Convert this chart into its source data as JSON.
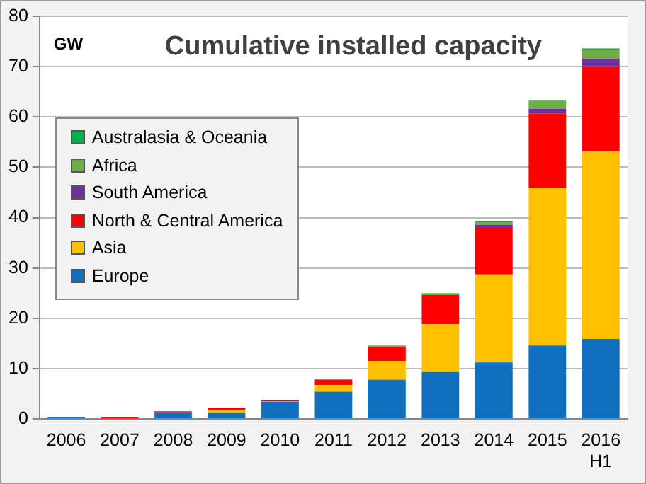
{
  "chart_data": {
    "type": "bar",
    "title": "Cumulative installed capacity",
    "ylabel": "GW",
    "stacked": true,
    "legend": "top left",
    "grid": "y",
    "categories": [
      "2006",
      "2007",
      "2008",
      "2009",
      "2010",
      "2011",
      "2012",
      "2013",
      "2014",
      "2015",
      "2016 H1"
    ],
    "ylim": [
      0,
      80
    ],
    "yticks": [
      0,
      10,
      20,
      30,
      40,
      50,
      60,
      70,
      80
    ],
    "series": [
      {
        "name": "Europe",
        "color": "#1070c0",
        "values": [
          0.3,
          0.1,
          1.3,
          1.3,
          3.4,
          5.4,
          7.8,
          9.3,
          11.2,
          14.6,
          15.9
        ]
      },
      {
        "name": "Asia",
        "color": "#ffc000",
        "values": [
          0,
          0,
          0,
          0.4,
          0.1,
          1.3,
          3.7,
          9.5,
          17.5,
          31.3,
          37.2
        ]
      },
      {
        "name": "North & Central America",
        "color": "#ff0000",
        "values": [
          0,
          0.2,
          0.2,
          0.5,
          0.3,
          1.1,
          2.8,
          5.8,
          9.4,
          14.8,
          17.0
        ]
      },
      {
        "name": "South America",
        "color": "#7030a0",
        "values": [
          0,
          0,
          0,
          0,
          0,
          0,
          0,
          0,
          0.5,
          0.9,
          1.5
        ]
      },
      {
        "name": "Africa",
        "color": "#70ad47",
        "values": [
          0,
          0,
          0,
          0,
          0,
          0.2,
          0.3,
          0.4,
          0.5,
          1.6,
          1.8
        ]
      },
      {
        "name": "Australasia & Oceania",
        "color": "#00b050",
        "values": [
          0,
          0,
          0,
          0,
          0,
          0,
          0,
          0,
          0.2,
          0.2,
          0.2
        ]
      }
    ]
  }
}
